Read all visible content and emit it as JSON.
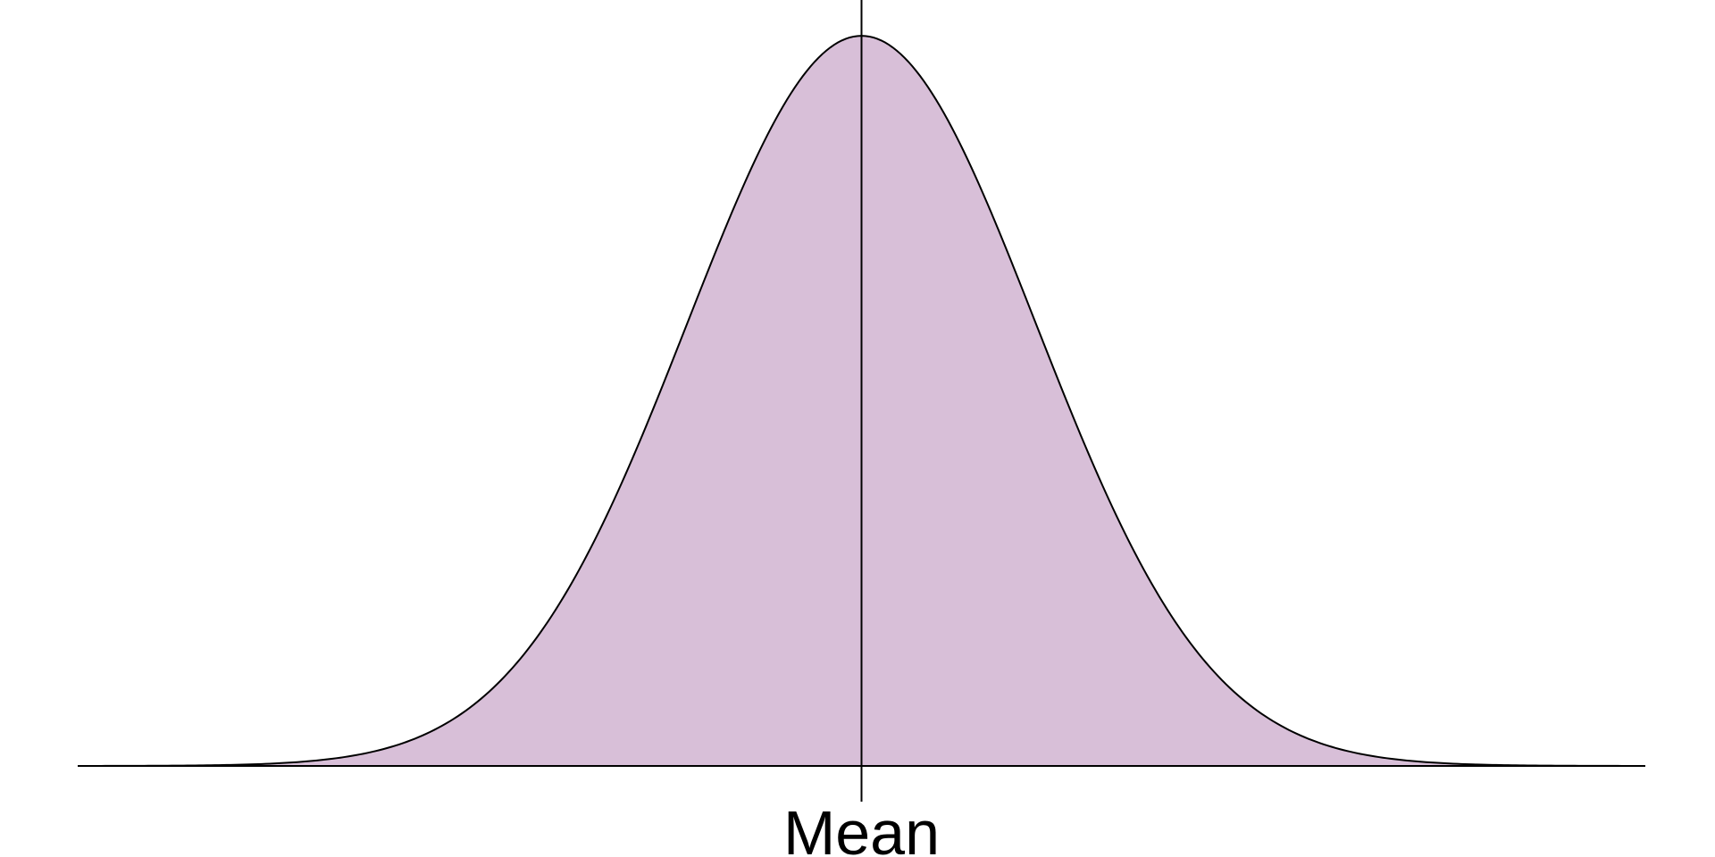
{
  "chart_data": {
    "type": "area",
    "distribution": "normal",
    "mean": 0,
    "sd": 1,
    "xlim": [
      -4.5,
      4.5
    ],
    "ylim": [
      0,
      0.399
    ],
    "fill_color": "#d8bfd8",
    "line_color": "#000000",
    "grid": false,
    "legend": "none",
    "annotations": [
      {
        "x": 0,
        "label": "Mean"
      }
    ]
  }
}
